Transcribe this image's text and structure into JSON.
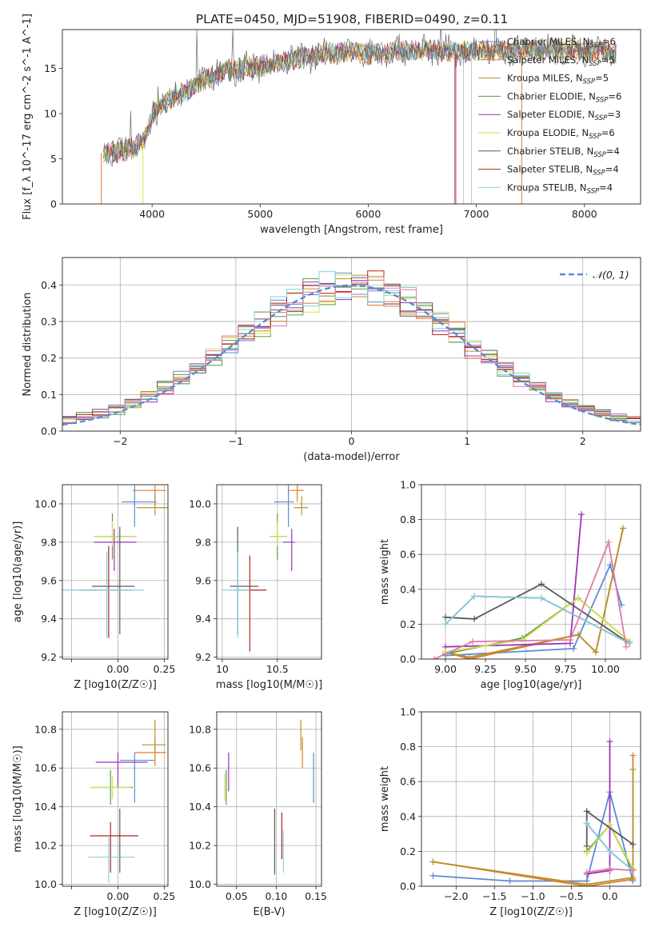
{
  "figure_title": "PLATE=0450, MJD=51908, FIBERID=0490, z=0.11",
  "colors": [
    "#5b8ad6",
    "#e07b2b",
    "#b8922c",
    "#5b9a4a",
    "#9a34b8",
    "#d4e050",
    "#5a5a5a",
    "#b22222",
    "#82d3e0"
  ],
  "chart_data": [
    {
      "id": "spectrum",
      "type": "line",
      "title": "PLATE=0450, MJD=51908, FIBERID=0490, z=0.11",
      "xlabel": "wavelength [Angstrom, rest frame]",
      "ylabel": "Flux [f_λ 10^-17 erg cm^-2 s^-1 A^-1]",
      "xlim": [
        3170,
        8520
      ],
      "ylim": [
        0,
        19.3
      ],
      "xticks": [
        4000,
        5000,
        6000,
        7000,
        8000
      ],
      "yticks": [
        0,
        5,
        10,
        15
      ],
      "grid": false,
      "legend_position": "top-right",
      "series": [
        {
          "name": "Chabrier MILES, N_SSP=6",
          "color": "#5b8ad6"
        },
        {
          "name": "Salpeter MILES, N_SSP=5",
          "color": "#e07b2b"
        },
        {
          "name": "Kroupa MILES, N_SSP=5",
          "color": "#b8922c"
        },
        {
          "name": "Chabrier ELODIE, N_SSP=6",
          "color": "#5b9a4a"
        },
        {
          "name": "Salpeter ELODIE, N_SSP=3",
          "color": "#9a34b8"
        },
        {
          "name": "Kroupa ELODIE, N_SSP=6",
          "color": "#d4e050"
        },
        {
          "name": "Chabrier STELIB, N_SSP=4",
          "color": "#5a5a5a"
        },
        {
          "name": "Salpeter STELIB, N_SSP=4",
          "color": "#b22222"
        },
        {
          "name": "Kroupa STELIB, N_SSP=4",
          "color": "#82d3e0"
        }
      ],
      "continuum": {
        "x": [
          3550,
          3700,
          3850,
          3950,
          4000,
          4100,
          4300,
          4500,
          4700,
          5000,
          5300,
          5600,
          5800,
          6000,
          6200,
          6500,
          6800,
          7000,
          7200,
          7500,
          7800,
          8000,
          8300
        ],
        "y": [
          5.6,
          5.8,
          6.3,
          7.5,
          9.8,
          11.2,
          12.4,
          13.8,
          14.8,
          15.2,
          16.0,
          16.6,
          16.9,
          16.6,
          16.8,
          17.1,
          16.8,
          17.0,
          17.0,
          17.1,
          17.0,
          17.0,
          16.8
        ]
      }
    },
    {
      "id": "residuals",
      "type": "bar",
      "xlabel": "(data-model)/error",
      "ylabel": "Normed distribution",
      "xlim": [
        -2.5,
        2.5
      ],
      "ylim": [
        0,
        0.475
      ],
      "xticks": [
        -2,
        -1,
        0,
        1,
        2
      ],
      "yticks": [
        0.0,
        0.1,
        0.2,
        0.3,
        0.4
      ],
      "grid": true,
      "legend": "𝒩(0, 1)",
      "bins": 40
    },
    {
      "id": "age-vs-z",
      "type": "scatter",
      "xlabel": "Z [log10(Z/Z☉)]",
      "ylabel": "age  [log10(age/yr)]",
      "xlim": [
        -0.3,
        0.27
      ],
      "ylim": [
        9.19,
        10.1
      ],
      "xticks": [
        -0.25,
        0.0,
        0.25
      ],
      "xticklabels": [
        "",
        "0.00",
        "0.25"
      ],
      "yticks": [
        9.2,
        9.4,
        9.6,
        9.8,
        10.0
      ],
      "grid": true,
      "points": [
        {
          "x": 0.09,
          "y": 10.01,
          "xerr": [
            0.07,
            0.12
          ],
          "yerr": [
            0.13,
            0.09
          ],
          "color": 0
        },
        {
          "x": 0.2,
          "y": 10.07,
          "xerr": [
            0.12,
            0.06
          ],
          "yerr": [
            0.06,
            0.04
          ],
          "color": 1
        },
        {
          "x": 0.2,
          "y": 9.98,
          "xerr": [
            0.1,
            0.07
          ],
          "yerr": [
            0.04,
            0.07
          ],
          "color": 2
        },
        {
          "x": -0.03,
          "y": 9.83,
          "xerr": [
            0.1,
            0.13
          ],
          "yerr": [
            0.12,
            0.12
          ],
          "color": 3
        },
        {
          "x": -0.02,
          "y": 9.8,
          "xerr": [
            0.11,
            0.12
          ],
          "yerr": [
            0.15,
            0.07
          ],
          "color": 4
        },
        {
          "x": -0.03,
          "y": 9.83,
          "xerr": [
            0.1,
            0.13
          ],
          "yerr": [
            0.05,
            0.08
          ],
          "color": 5
        },
        {
          "x": 0.01,
          "y": 9.57,
          "xerr": [
            0.15,
            0.08
          ],
          "yerr": [
            0.25,
            0.31
          ],
          "color": 6
        },
        {
          "x": -0.05,
          "y": 9.55,
          "xerr": [
            0.16,
            0.12
          ],
          "yerr": [
            0.25,
            0.23
          ],
          "color": 7
        },
        {
          "x": -0.06,
          "y": 9.55,
          "xerr": [
            0.24,
            0.2
          ],
          "yerr": [
            0.25,
            0.2
          ],
          "color": 8
        }
      ]
    },
    {
      "id": "age-vs-mass",
      "type": "scatter",
      "xlabel": "mass [log10(M/M☉)]",
      "ylabel": "",
      "xlim": [
        9.95,
        10.9
      ],
      "ylim": [
        9.19,
        10.1
      ],
      "xticks": [
        10.0,
        10.5
      ],
      "yticks": [
        9.2,
        9.4,
        9.6,
        9.8,
        10.0
      ],
      "grid": true,
      "points": [
        {
          "x": 10.6,
          "y": 10.01,
          "xerr": [
            0.13,
            0.05
          ],
          "yerr": [
            0.13,
            0.09
          ],
          "color": 0
        },
        {
          "x": 10.68,
          "y": 10.07,
          "xerr": [
            0.08,
            0.06
          ],
          "yerr": [
            0.06,
            0.04
          ],
          "color": 1
        },
        {
          "x": 10.72,
          "y": 9.98,
          "xerr": [
            0.07,
            0.06
          ],
          "yerr": [
            0.04,
            0.06
          ],
          "color": 2
        },
        {
          "x": 10.5,
          "y": 9.83,
          "xerr": [
            0.07,
            0.09
          ],
          "yerr": [
            0.12,
            0.12
          ],
          "color": 3
        },
        {
          "x": 10.63,
          "y": 9.8,
          "xerr": [
            0.08,
            0.03
          ],
          "yerr": [
            0.15,
            0.07
          ],
          "color": 4
        },
        {
          "x": 10.5,
          "y": 9.83,
          "xerr": [
            0.07,
            0.09
          ],
          "yerr": [
            0.05,
            0.08
          ],
          "color": 5
        },
        {
          "x": 10.14,
          "y": 9.57,
          "xerr": [
            0.07,
            0.19
          ],
          "yerr": [
            0.25,
            0.31
          ],
          "color": 6
        },
        {
          "x": 10.25,
          "y": 9.55,
          "xerr": [
            0.13,
            0.15
          ],
          "yerr": [
            0.32,
            0.18
          ],
          "color": 7
        },
        {
          "x": 10.14,
          "y": 9.55,
          "xerr": [
            0.14,
            0.11
          ],
          "yerr": [
            0.25,
            0.2
          ],
          "color": 8
        }
      ]
    },
    {
      "id": "weight-vs-age",
      "type": "line",
      "xlabel": "age  [log10(age/yr)]",
      "ylabel": "mass weight",
      "xlim": [
        8.85,
        10.22
      ],
      "ylim": [
        0.0,
        1.0
      ],
      "xticks": [
        9.0,
        9.25,
        9.5,
        9.75,
        10.0
      ],
      "xticklabels": [
        "9.00",
        "9.25",
        "9.50",
        "9.75",
        "10.00"
      ],
      "yticks": [
        0.0,
        0.2,
        0.4,
        0.6,
        0.8,
        1.0
      ],
      "grid": true,
      "series": [
        {
          "color": 0,
          "x": [
            9.0,
            9.8,
            10.03,
            10.1
          ],
          "y": [
            0.02,
            0.06,
            0.54,
            0.31
          ]
        },
        {
          "color": 1,
          "x": [
            9.0,
            9.15,
            9.83,
            9.94,
            10.11
          ],
          "y": [
            0.04,
            0.0,
            0.14,
            0.04,
            0.75
          ]
        },
        {
          "color": 2,
          "x": [
            9.0,
            9.15,
            9.83,
            9.94,
            10.11
          ],
          "y": [
            0.04,
            0.01,
            0.14,
            0.04,
            0.75
          ]
        },
        {
          "color": 3,
          "x": [
            9.0,
            9.48,
            9.83,
            10.15
          ],
          "y": [
            0.03,
            0.12,
            0.35,
            0.1
          ]
        },
        {
          "color": 4,
          "x": [
            9.0,
            9.78,
            9.85
          ],
          "y": [
            0.07,
            0.09,
            0.83
          ]
        },
        {
          "color": 5,
          "x": [
            9.0,
            9.48,
            9.83,
            10.15
          ],
          "y": [
            0.04,
            0.11,
            0.35,
            0.1
          ]
        },
        {
          "color": 6,
          "x": [
            9.0,
            9.18,
            9.6,
            10.15
          ],
          "y": [
            0.24,
            0.23,
            0.43,
            0.09
          ]
        },
        {
          "color": 7,
          "x": [
            9.0,
            9.18,
            9.6,
            10.15
          ],
          "y": [
            0.2,
            0.36,
            0.35,
            0.09
          ]
        },
        {
          "color": 8,
          "x": [
            9.0,
            9.18,
            9.6,
            10.15
          ],
          "y": [
            0.2,
            0.36,
            0.35,
            0.09
          ]
        },
        {
          "color": 9,
          "x": [
            8.93,
            9.17,
            9.78,
            10.02,
            10.13
          ],
          "y": [
            0.0,
            0.1,
            0.11,
            0.67,
            0.07
          ]
        }
      ]
    },
    {
      "id": "mass-vs-z",
      "type": "scatter",
      "xlabel": "Z [log10(Z/Z☉)]",
      "ylabel": "mass [log10(M/M☉)]",
      "xlim": [
        -0.3,
        0.27
      ],
      "ylim": [
        9.99,
        10.89
      ],
      "xticks": [
        -0.25,
        0.0,
        0.25
      ],
      "xticklabels": [
        "",
        "0.00",
        "0.25"
      ],
      "yticks": [
        10.0,
        10.2,
        10.4,
        10.6,
        10.8
      ],
      "grid": true,
      "points": [
        {
          "x": 0.09,
          "y": 10.64,
          "xerr": [
            0.08,
            0.11
          ],
          "yerr": [
            0.22,
            0.04
          ],
          "color": 0
        },
        {
          "x": 0.2,
          "y": 10.68,
          "xerr": [
            0.11,
            0.06
          ],
          "yerr": [
            0.07,
            0.07
          ],
          "color": 1
        },
        {
          "x": 0.2,
          "y": 10.72,
          "xerr": [
            0.07,
            0.06
          ],
          "yerr": [
            0.04,
            0.13
          ],
          "color": 2
        },
        {
          "x": -0.04,
          "y": 10.5,
          "xerr": [
            0.11,
            0.12
          ],
          "yerr": [
            0.09,
            0.09
          ],
          "color": 3
        },
        {
          "x": 0.0,
          "y": 10.63,
          "xerr": [
            0.12,
            0.16
          ],
          "yerr": [
            0.13,
            0.05
          ],
          "color": 4
        },
        {
          "x": -0.03,
          "y": 10.5,
          "xerr": [
            0.12,
            0.1
          ],
          "yerr": [
            0.06,
            0.06
          ],
          "color": 5
        },
        {
          "x": 0.01,
          "y": 10.14,
          "xerr": [
            0.01,
            0.01
          ],
          "yerr": [
            0.08,
            0.25
          ],
          "color": 6
        },
        {
          "x": -0.04,
          "y": 10.25,
          "xerr": [
            0.11,
            0.15
          ],
          "yerr": [
            0.19,
            0.07
          ],
          "color": 7
        },
        {
          "x": -0.05,
          "y": 10.14,
          "xerr": [
            0.11,
            0.14
          ],
          "yerr": [
            0.13,
            0.11
          ],
          "color": 8
        }
      ]
    },
    {
      "id": "mass-vs-ebv",
      "type": "scatter",
      "xlabel": "E(B-V)",
      "ylabel": "",
      "xlim": [
        0.025,
        0.157
      ],
      "ylim": [
        9.99,
        10.89
      ],
      "xticks": [
        0.05,
        0.1,
        0.15
      ],
      "xticklabels": [
        "0.05",
        "0.10",
        "0.15"
      ],
      "yticks": [
        10.0,
        10.2,
        10.4,
        10.6,
        10.8
      ],
      "grid": true,
      "points": [
        {
          "x": 0.147,
          "y": 10.55,
          "xerr": [
            0,
            0
          ],
          "yerr": [
            0.13,
            0.13
          ],
          "color": 0
        },
        {
          "x": 0.133,
          "y": 10.67,
          "xerr": [
            0,
            0
          ],
          "yerr": [
            0.07,
            0.09
          ],
          "color": 1
        },
        {
          "x": 0.131,
          "y": 10.76,
          "xerr": [
            0,
            0
          ],
          "yerr": [
            0.07,
            0.09
          ],
          "color": 2
        },
        {
          "x": 0.037,
          "y": 10.5,
          "xerr": [
            0,
            0
          ],
          "yerr": [
            0.09,
            0.09
          ],
          "color": 3
        },
        {
          "x": 0.04,
          "y": 10.58,
          "xerr": [
            0,
            0
          ],
          "yerr": [
            0.1,
            0.1
          ],
          "color": 4
        },
        {
          "x": 0.035,
          "y": 10.5,
          "xerr": [
            0,
            0
          ],
          "yerr": [
            0.07,
            0.07
          ],
          "color": 5
        },
        {
          "x": 0.098,
          "y": 10.22,
          "xerr": [
            0,
            0
          ],
          "yerr": [
            0.17,
            0.17
          ],
          "color": 6
        },
        {
          "x": 0.107,
          "y": 10.25,
          "xerr": [
            0,
            0
          ],
          "yerr": [
            0.12,
            0.12
          ],
          "color": 7
        },
        {
          "x": 0.109,
          "y": 10.17,
          "xerr": [
            0,
            0
          ],
          "yerr": [
            0.11,
            0.11
          ],
          "color": 8
        }
      ]
    },
    {
      "id": "weight-vs-z",
      "type": "line",
      "xlabel": "Z [log10(Z/Z☉)]",
      "ylabel": "mass weight",
      "xlim": [
        -2.45,
        0.4
      ],
      "ylim": [
        0.0,
        1.0
      ],
      "xticks": [
        -2.0,
        -1.5,
        -1.0,
        -0.5,
        0.0
      ],
      "xticklabels": [
        "−2.0",
        "−1.5",
        "−1.0",
        "−0.5",
        "0.0"
      ],
      "yticks": [
        0.0,
        0.2,
        0.4,
        0.6,
        0.8,
        1.0
      ],
      "grid": true,
      "series": [
        {
          "color": 0,
          "x": [
            -2.3,
            -1.3,
            -0.3,
            0.0,
            0.3,
            0.3
          ],
          "y": [
            0.06,
            0.03,
            0.03,
            0.54,
            0.03,
            0.1
          ]
        },
        {
          "color": 1,
          "x": [
            -2.3,
            -0.3,
            0.3,
            0.3
          ],
          "y": [
            0.14,
            0.0,
            0.04,
            0.75
          ]
        },
        {
          "color": 2,
          "x": [
            -2.3,
            -0.3,
            0.3,
            0.3
          ],
          "y": [
            0.14,
            0.01,
            0.05,
            0.67
          ]
        },
        {
          "color": 3,
          "x": [
            -0.3,
            0.0,
            0.3
          ],
          "y": [
            0.2,
            0.35,
            0.09
          ]
        },
        {
          "color": 4,
          "x": [
            -0.3,
            0.0,
            0.0
          ],
          "y": [
            0.07,
            0.09,
            0.83
          ]
        },
        {
          "color": 5,
          "x": [
            -0.3,
            0.0,
            0.3
          ],
          "y": [
            0.19,
            0.35,
            0.1
          ]
        },
        {
          "color": 6,
          "x": [
            -0.3,
            -0.3,
            0.3
          ],
          "y": [
            0.23,
            0.43,
            0.24
          ]
        },
        {
          "color": 7,
          "x": [
            -0.3,
            0.0,
            0.3
          ],
          "y": [
            0.36,
            0.2,
            0.09
          ]
        },
        {
          "color": 8,
          "x": [
            -0.3,
            0.0,
            0.3
          ],
          "y": [
            0.36,
            0.2,
            0.09
          ]
        },
        {
          "color": 9,
          "x": [
            -0.3,
            0.0,
            0.3
          ],
          "y": [
            0.08,
            0.1,
            0.09
          ]
        }
      ]
    }
  ]
}
